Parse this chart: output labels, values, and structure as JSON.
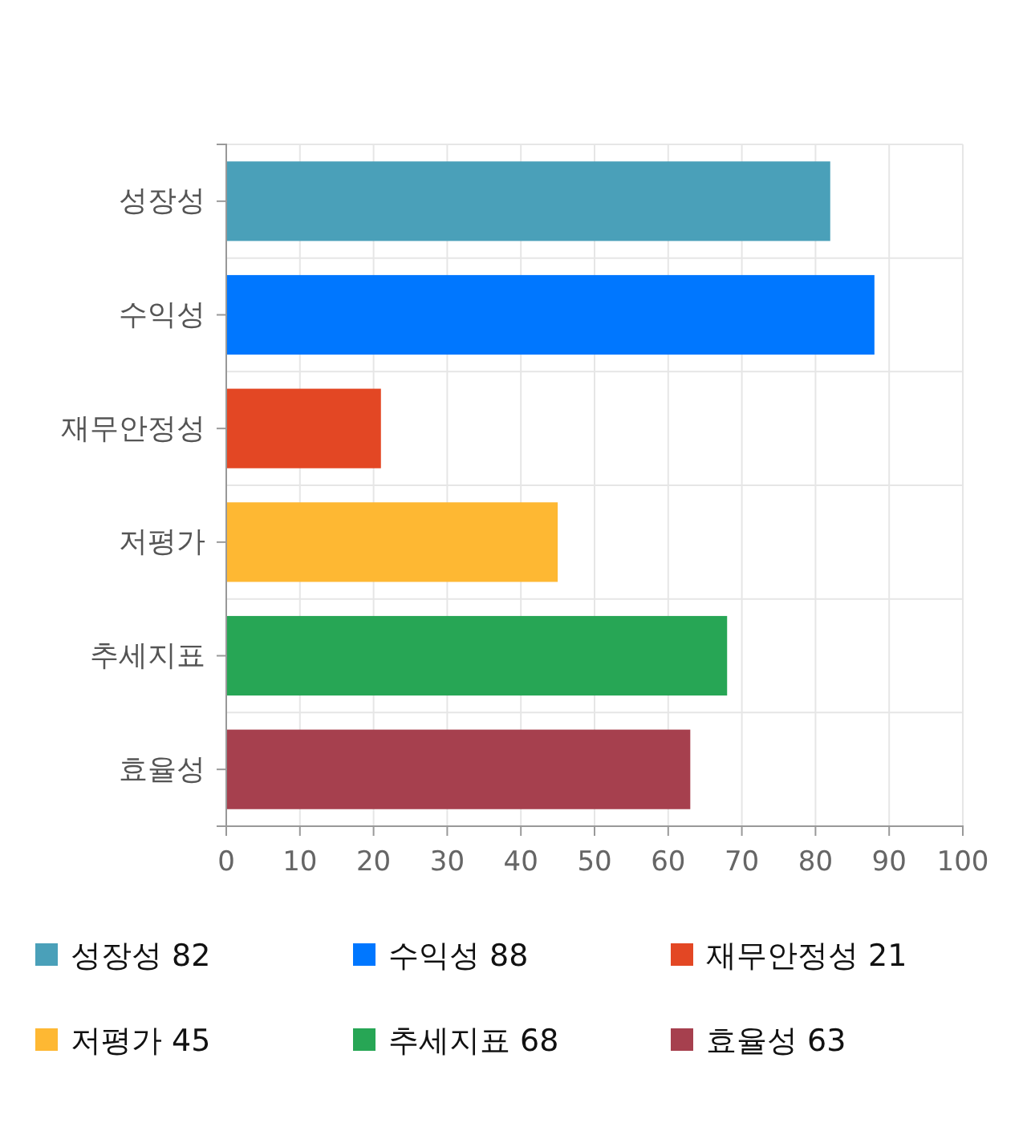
{
  "chart_data": {
    "type": "bar",
    "orientation": "horizontal",
    "stacked": true,
    "categories": [
      "성장성",
      "수익성",
      "재무안정성",
      "저평가",
      "추세지표",
      "효율성"
    ],
    "series": [
      {
        "name": "성장성 82",
        "color": "#4aa0b9",
        "values": [
          82,
          null,
          null,
          null,
          null,
          null
        ]
      },
      {
        "name": "수익성 88",
        "color": "#0077ff",
        "values": [
          null,
          88,
          null,
          null,
          null,
          null
        ]
      },
      {
        "name": "재무안정성 21",
        "color": "#e34724",
        "values": [
          null,
          null,
          21,
          null,
          null,
          null
        ]
      },
      {
        "name": "저평가 45",
        "color": "#feb833",
        "values": [
          null,
          null,
          null,
          45,
          null,
          null
        ]
      },
      {
        "name": "추세지표 68",
        "color": "#27a655",
        "values": [
          null,
          null,
          null,
          null,
          68,
          null
        ]
      },
      {
        "name": "효율성 63",
        "color": "#a6404e",
        "values": [
          null,
          null,
          null,
          null,
          null,
          63
        ]
      }
    ],
    "xlim": [
      0,
      100
    ],
    "xticks": [
      0,
      10,
      20,
      30,
      40,
      50,
      60,
      70,
      80,
      90,
      100
    ],
    "grid": true,
    "legend": "bottom"
  }
}
